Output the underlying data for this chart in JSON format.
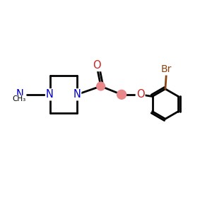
{
  "bg_color": "#ffffff",
  "colors": {
    "N": "#0000cc",
    "O": "#cc2222",
    "Br": "#8b4513",
    "C": "#000000",
    "bond": "#000000",
    "atom_circle": "#e8888a"
  },
  "bond_lw": 2.0,
  "figsize": [
    3.0,
    3.0
  ],
  "dpi": 100,
  "xlim": [
    0,
    10
  ],
  "ylim": [
    0,
    10
  ]
}
